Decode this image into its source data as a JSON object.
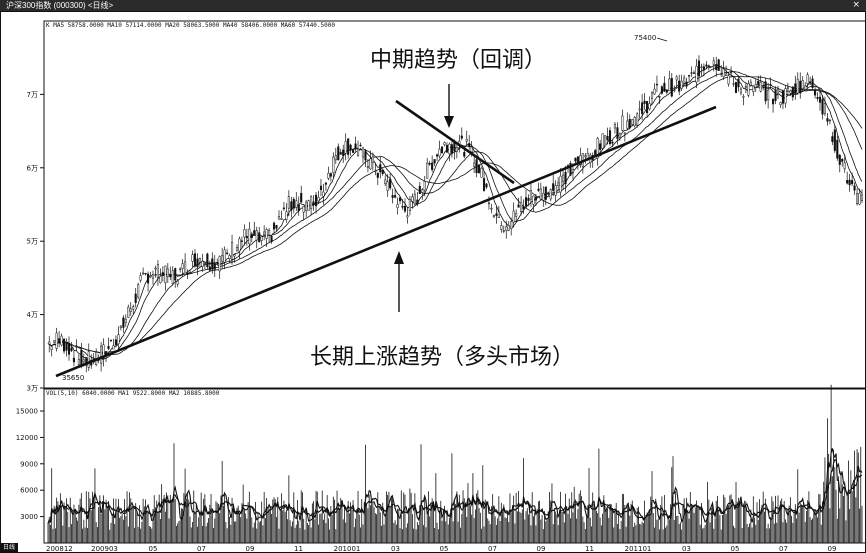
{
  "window": {
    "title": "沪深300指数",
    "code": "(000300)",
    "period": "<日线>"
  },
  "price_panel": {
    "ma_legend": "K MA5 58758.0000 MA10 57114.0000 MA20 58063.5000 MA40 58406.0000 MA60 57440.5000"
  },
  "volume_panel": {
    "legend": "VOL(5,10) 6040.0000 MA1 9522.8000 MA2 10885.8000"
  },
  "annotations": {
    "mid_term": "中期趋势（回调）",
    "long_term": "长期上涨趋势（多头市场）"
  },
  "footer": {
    "period_button": "日线"
  },
  "chart_data": [
    {
      "type": "line",
      "x": [
        "200812",
        "200903",
        "05",
        "07",
        "09",
        "11",
        "201001",
        "03",
        "05",
        "07",
        "09",
        "11",
        "201101",
        "03",
        "05",
        "07",
        "09"
      ],
      "series": [],
      "approx_close": [
        36000,
        34000,
        45000,
        47000,
        50000,
        55000,
        63000,
        55000,
        64000,
        53000,
        58000,
        64000,
        70000,
        74000,
        70000,
        71000,
        55000
      ],
      "y_ticks": [
        "3万",
        "4万",
        "5万",
        "6万",
        "7万"
      ],
      "ylim": [
        30000,
        80000
      ],
      "annotations": [
        "75400",
        "35650"
      ],
      "grid": false
    },
    {
      "type": "bar",
      "y_ticks": [
        "3000",
        "6000",
        "9000",
        "12000",
        "15000"
      ],
      "ylim": [
        0,
        17500
      ],
      "grid": false
    }
  ]
}
